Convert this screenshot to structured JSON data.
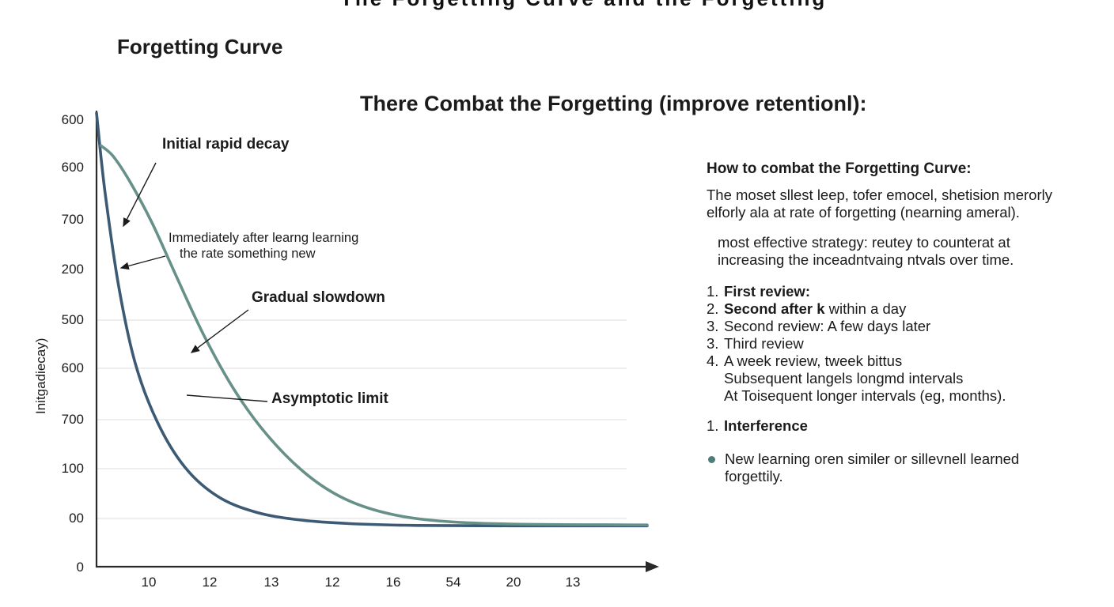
{
  "page": {
    "top_cropped_text": "The Forgetting Curve and the Forgetting",
    "title": "Forgetting Curve",
    "heading": "There Combat the Forgetting (improve retentionl):"
  },
  "chart_data": {
    "type": "line",
    "title": "Forgetting Curve",
    "ylabel": "Initgadiecay)",
    "xlabel": "",
    "grid": true,
    "legend": "none",
    "y_tick_labels": [
      "600",
      "600",
      "700",
      "200",
      "500",
      "600",
      "700",
      "100",
      "00",
      "0"
    ],
    "x_tick_labels": [
      "10",
      "12",
      "13",
      "12",
      "16",
      "54",
      "20",
      "13"
    ],
    "series": [
      {
        "name": "initial-rapid-decay",
        "color": "#3c5a74",
        "points": [
          [
            0,
            0
          ],
          [
            0.015,
            0.17
          ],
          [
            0.04,
            0.38
          ],
          [
            0.07,
            0.55
          ],
          [
            0.11,
            0.68
          ],
          [
            0.16,
            0.78
          ],
          [
            0.22,
            0.845
          ],
          [
            0.29,
            0.88
          ],
          [
            0.37,
            0.897
          ],
          [
            0.46,
            0.905
          ],
          [
            0.58,
            0.909
          ],
          [
            0.75,
            0.91
          ],
          [
            1,
            0.91
          ]
        ]
      },
      {
        "name": "gradual-slowdown",
        "color": "#679089",
        "points": [
          [
            0.008,
            0.072
          ],
          [
            0.03,
            0.095
          ],
          [
            0.06,
            0.15
          ],
          [
            0.1,
            0.24
          ],
          [
            0.145,
            0.36
          ],
          [
            0.195,
            0.49
          ],
          [
            0.25,
            0.61
          ],
          [
            0.31,
            0.71
          ],
          [
            0.38,
            0.795
          ],
          [
            0.45,
            0.85
          ],
          [
            0.53,
            0.883
          ],
          [
            0.62,
            0.899
          ],
          [
            0.75,
            0.906
          ],
          [
            1,
            0.908
          ]
        ]
      }
    ],
    "annotations": [
      {
        "label": "Initial rapid decay"
      },
      {
        "line1": "Immediately after learng learning",
        "line2": "the rate something new"
      },
      {
        "label": "Gradual slowdown"
      },
      {
        "label": "Asymptotic limit"
      }
    ]
  },
  "panel": {
    "heading": "How to combat the Forgetting Curve:",
    "para1": "The moset sllest leep, tofer emocel, shetision merorly elforly ala at rate of forgetting (nearning ameral).",
    "para2": "most effective strategy: reutey to counterat at increasing the inceadntvaing ntvals over time.",
    "list": [
      {
        "num": "1.",
        "bold": "First review:",
        "rest": ""
      },
      {
        "num": "2.",
        "bold": "Second after k",
        "rest": " within a day"
      },
      {
        "num": "3.",
        "bold": "",
        "rest": "Second review: A few days later"
      },
      {
        "num": "3.",
        "bold": "",
        "rest": "Third review"
      },
      {
        "num": "4.",
        "bold": "",
        "rest": "A week review, tweek bittus"
      },
      {
        "num": "",
        "bold": "",
        "rest": "Subsequent langels longmd intervals"
      },
      {
        "num": "",
        "bold": "",
        "rest": "At Toisequent longer intervals (eg, months)."
      }
    ],
    "interference_num": "1.",
    "interference": "Interference",
    "bullet_text": "New learning oren similer or sillevnell learned forgettily.",
    "bullet_color": "#4e7d79"
  }
}
